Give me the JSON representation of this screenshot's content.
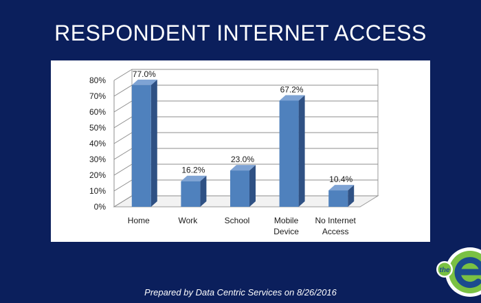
{
  "slide": {
    "title": "RESPONDENT INTERNET ACCESS",
    "footer": "Prepared by Data Centric Services on 8/26/2016",
    "logo_text": "the"
  },
  "colors": {
    "background": "#0b1f5c",
    "bar_front": "#4f81bd",
    "bar_side": "#2f5184",
    "bar_top": "#7ea3d4",
    "logo_green": "#7ac143",
    "logo_blue": "#1b4a8f"
  },
  "chart_data": {
    "type": "bar",
    "style": "3d-column",
    "categories": [
      "Home",
      "Work",
      "School",
      "Mobile Device",
      "No Internet Access"
    ],
    "category_lines": [
      [
        "Home"
      ],
      [
        "Work"
      ],
      [
        "School"
      ],
      [
        "Mobile",
        "Device"
      ],
      [
        "No Internet",
        "Access"
      ]
    ],
    "values": [
      77.0,
      16.2,
      23.0,
      67.2,
      10.4
    ],
    "data_labels": [
      "77.0%",
      "16.2%",
      "23.0%",
      "67.2%",
      "10.4%"
    ],
    "yticks": [
      "0%",
      "10%",
      "20%",
      "30%",
      "40%",
      "50%",
      "60%",
      "70%",
      "80%"
    ],
    "ylim": [
      0,
      80
    ],
    "grid": true,
    "legend": "none"
  }
}
